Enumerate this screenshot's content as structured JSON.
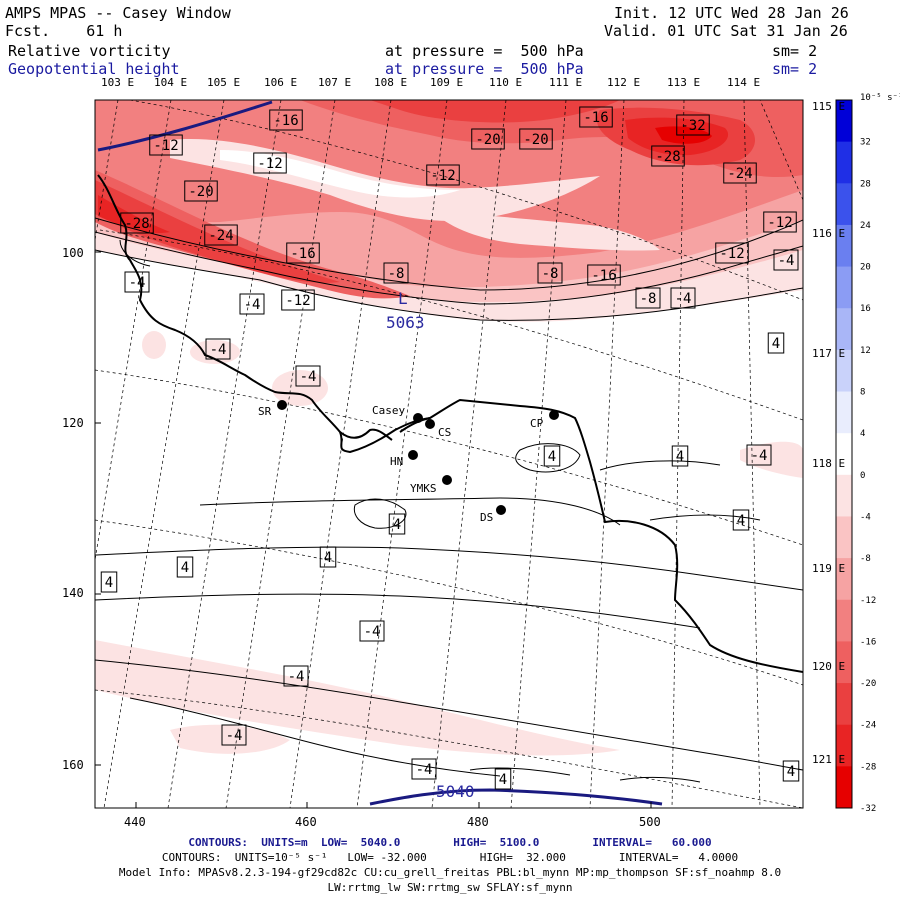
{
  "header": {
    "title": "AMPS MPAS -- Casey Window",
    "fcst": "Fcst.    61 h",
    "init": "Init. 12 UTC Wed 28 Jan 26",
    "valid": "Valid. 01 UTC Sat 31 Jan 26",
    "field1_name": "Relative vorticity",
    "field1_level": "at pressure =  500 hPa",
    "field1_sm": "sm= 2",
    "field2_name": "Geopotential height",
    "field2_level": "at pressure =  500 hPa",
    "field2_sm": "sm= 2"
  },
  "top_lon_labels": [
    "103 E",
    "104 E",
    "105 E",
    "106 E",
    "107 E",
    "108 E",
    "109 E",
    "110 E",
    "111 E",
    "112 E",
    "113 E",
    "114 E"
  ],
  "right_lon_labels": [
    "115 E",
    "116 E",
    "117 E",
    "118 E",
    "119 E",
    "120 E",
    "121 E"
  ],
  "x_axis_labels": [
    "440",
    "460",
    "480",
    "500"
  ],
  "y_axis_labels": [
    "100",
    "120",
    "140",
    "160"
  ],
  "colorbar": {
    "unit": "10⁻⁵ s⁻¹",
    "labels": [
      "32",
      "28",
      "24",
      "20",
      "16",
      "12",
      "8",
      "4",
      "0",
      "-4",
      "-8",
      "-12",
      "-16",
      "-20",
      "-24",
      "-28",
      "-32"
    ],
    "colors": [
      "#0000d8",
      "#1f2fe6",
      "#3b52ec",
      "#6a7ff0",
      "#8b9cf4",
      "#a9b6f7",
      "#c9d2fa",
      "#e9edfd",
      "#ffffff",
      "#fce3e3",
      "#fac4c4",
      "#f6a3a3",
      "#f28080",
      "#ee6060",
      "#ea4040",
      "#e82424",
      "#e60000"
    ]
  },
  "contour_labels": [
    {
      "text": "-16"
    },
    {
      "text": "-12"
    },
    {
      "text": "-12"
    },
    {
      "text": "-20"
    },
    {
      "text": "-28"
    },
    {
      "text": "-24"
    },
    {
      "text": "-16"
    },
    {
      "text": "-12"
    },
    {
      "text": "-8"
    },
    {
      "text": "-20"
    },
    {
      "text": "-20"
    },
    {
      "text": "-12"
    },
    {
      "text": "-16"
    },
    {
      "text": "-32"
    },
    {
      "text": "-28"
    },
    {
      "text": "-24"
    },
    {
      "text": "-12"
    },
    {
      "text": "-12"
    },
    {
      "text": "-8"
    },
    {
      "text": "-16"
    },
    {
      "text": "-8"
    },
    {
      "text": "-4"
    },
    {
      "text": "-4"
    },
    {
      "text": "-4"
    },
    {
      "text": "-4"
    },
    {
      "text": "-4"
    },
    {
      "text": "4"
    },
    {
      "text": "4"
    },
    {
      "text": "4"
    },
    {
      "text": "-4"
    },
    {
      "text": "-4"
    },
    {
      "text": "4"
    },
    {
      "text": "4"
    },
    {
      "text": "4"
    },
    {
      "text": "4"
    },
    {
      "text": "4"
    },
    {
      "text": "-4"
    },
    {
      "text": "-4"
    },
    {
      "text": "-4"
    },
    {
      "text": "-4"
    },
    {
      "text": "4"
    },
    {
      "text": "4"
    }
  ],
  "stations": [
    {
      "name": "SR"
    },
    {
      "name": "Casey"
    },
    {
      "name": "CS"
    },
    {
      "name": "CP"
    },
    {
      "name": "HN"
    },
    {
      "name": "YMKS"
    },
    {
      "name": "DS"
    }
  ],
  "height_labels": {
    "low_marker": "L",
    "low_value": "5063",
    "contour_value": "5040"
  },
  "footer": {
    "line1": "CONTOURS:  UNITS=m  LOW=  5040.0        HIGH=  5100.0        INTERVAL=   60.000",
    "line2": "CONTOURS:  UNITS=10⁻⁵ s⁻¹   LOW= -32.000        HIGH=  32.000        INTERVAL=   4.0000",
    "line3": "Model Info: MPASv8.2.3-194-gf29cd82c CU:cu_grell_freitas PBL:bl_mynn MP:mp_thompson SF:sf_noahmp 8.0",
    "line4": "LW:rrtmg_lw SW:rrtmg_sw SFLAY:sf_mynn"
  }
}
